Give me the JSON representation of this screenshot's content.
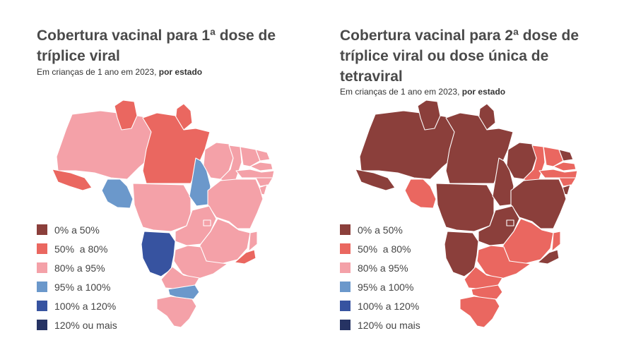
{
  "colors": {
    "c0": "#8b3f3b",
    "c1": "#ea6760",
    "c2": "#f4a1a8",
    "c3": "#6b98cb",
    "c4": "#3753a0",
    "c5": "#263363"
  },
  "legend": [
    {
      "key": "c0",
      "label": "0% a 50%"
    },
    {
      "key": "c1",
      "label": "50%  a 80%"
    },
    {
      "key": "c2",
      "label": "80% a 95%"
    },
    {
      "key": "c3",
      "label": "95% a 100%"
    },
    {
      "key": "c4",
      "label": "100% a 120%"
    },
    {
      "key": "c5",
      "label": "120% ou mais"
    }
  ],
  "maps": [
    {
      "title": "Cobertura vacinal para 1ª dose de tríplice viral",
      "subtitle_regular": "Em crianças de 1 ano em 2023, ",
      "subtitle_bold": "por estado",
      "states": {
        "AM": "c2",
        "RR": "c1",
        "AP": "c1",
        "PA": "c1",
        "AC": "c1",
        "RO": "c3",
        "MT": "c2",
        "TO": "c3",
        "MA": "c2",
        "PI": "c2",
        "CE": "c2",
        "RN": "c2",
        "PB": "c2",
        "PE": "c2",
        "AL": "c2",
        "SE": "c2",
        "BA": "c2",
        "GO": "c2",
        "DF": "c2",
        "MG": "c2",
        "ES": "c2",
        "RJ": "c1",
        "SP": "c2",
        "MS": "c4",
        "PR": "c2",
        "SC": "c3",
        "RS": "c2"
      }
    },
    {
      "title": "Cobertura vacinal para 2ª dose de tríplice viral ou dose única de tetraviral",
      "subtitle_regular": "Em crianças de 1 ano em 2023, ",
      "subtitle_bold": "por estado",
      "states": {
        "AM": "c0",
        "RR": "c0",
        "AP": "c0",
        "PA": "c0",
        "AC": "c0",
        "RO": "c1",
        "MT": "c0",
        "TO": "c0",
        "MA": "c0",
        "PI": "c1",
        "CE": "c1",
        "RN": "c0",
        "PB": "c1",
        "PE": "c1",
        "AL": "c1",
        "SE": "c0",
        "BA": "c0",
        "GO": "c0",
        "DF": "c0",
        "MG": "c1",
        "ES": "c1",
        "RJ": "c0",
        "SP": "c1",
        "MS": "c0",
        "PR": "c1",
        "SC": "c1",
        "RS": "c1"
      }
    }
  ]
}
